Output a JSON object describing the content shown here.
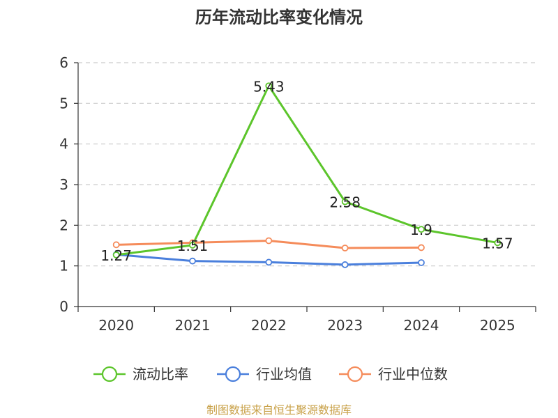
{
  "chart_data": {
    "type": "line",
    "title": "历年流动比率变化情况",
    "categories": [
      "2020",
      "2021",
      "2022",
      "2023",
      "2024",
      "2025"
    ],
    "ylim": [
      0,
      6
    ],
    "yticks": [
      0,
      1,
      2,
      3,
      4,
      5,
      6
    ],
    "grid": true,
    "legend_position": "bottom",
    "series": [
      {
        "name": "流动比率",
        "color": "#5cc52b",
        "values": [
          1.27,
          1.51,
          5.43,
          2.58,
          1.9,
          1.57
        ],
        "labels": [
          "1.27",
          "1.51",
          "5.43",
          "2.58",
          "1.9",
          "1.57"
        ]
      },
      {
        "name": "行业均值",
        "color": "#4a7fdc",
        "values": [
          1.28,
          1.12,
          1.09,
          1.03,
          1.08,
          null
        ]
      },
      {
        "name": "行业中位数",
        "color": "#f58c5b",
        "values": [
          1.52,
          1.57,
          1.62,
          1.44,
          1.45,
          null
        ]
      }
    ]
  },
  "source": "制图数据来自恒生聚源数据库"
}
